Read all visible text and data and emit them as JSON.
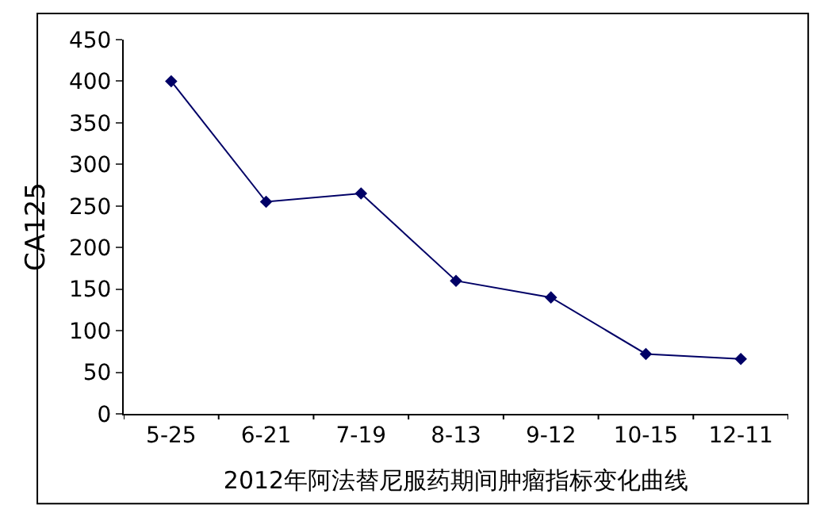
{
  "chart_data": {
    "type": "line",
    "xlabel": "2012年阿法替尼服药期间肿瘤指标变化曲线",
    "ylabel": "CA125",
    "categories": [
      "5-25",
      "6-21",
      "7-19",
      "8-13",
      "9-12",
      "10-15",
      "12-11"
    ],
    "series": [
      {
        "color": "#000066",
        "values": [
          400,
          255,
          265,
          160,
          140,
          72,
          66
        ]
      }
    ],
    "ylim": [
      0,
      450
    ],
    "yticks": [
      0,
      50,
      100,
      150,
      200,
      250,
      300,
      350,
      400,
      450
    ],
    "grid": false,
    "marker": "diamond",
    "line_style": "solid"
  }
}
